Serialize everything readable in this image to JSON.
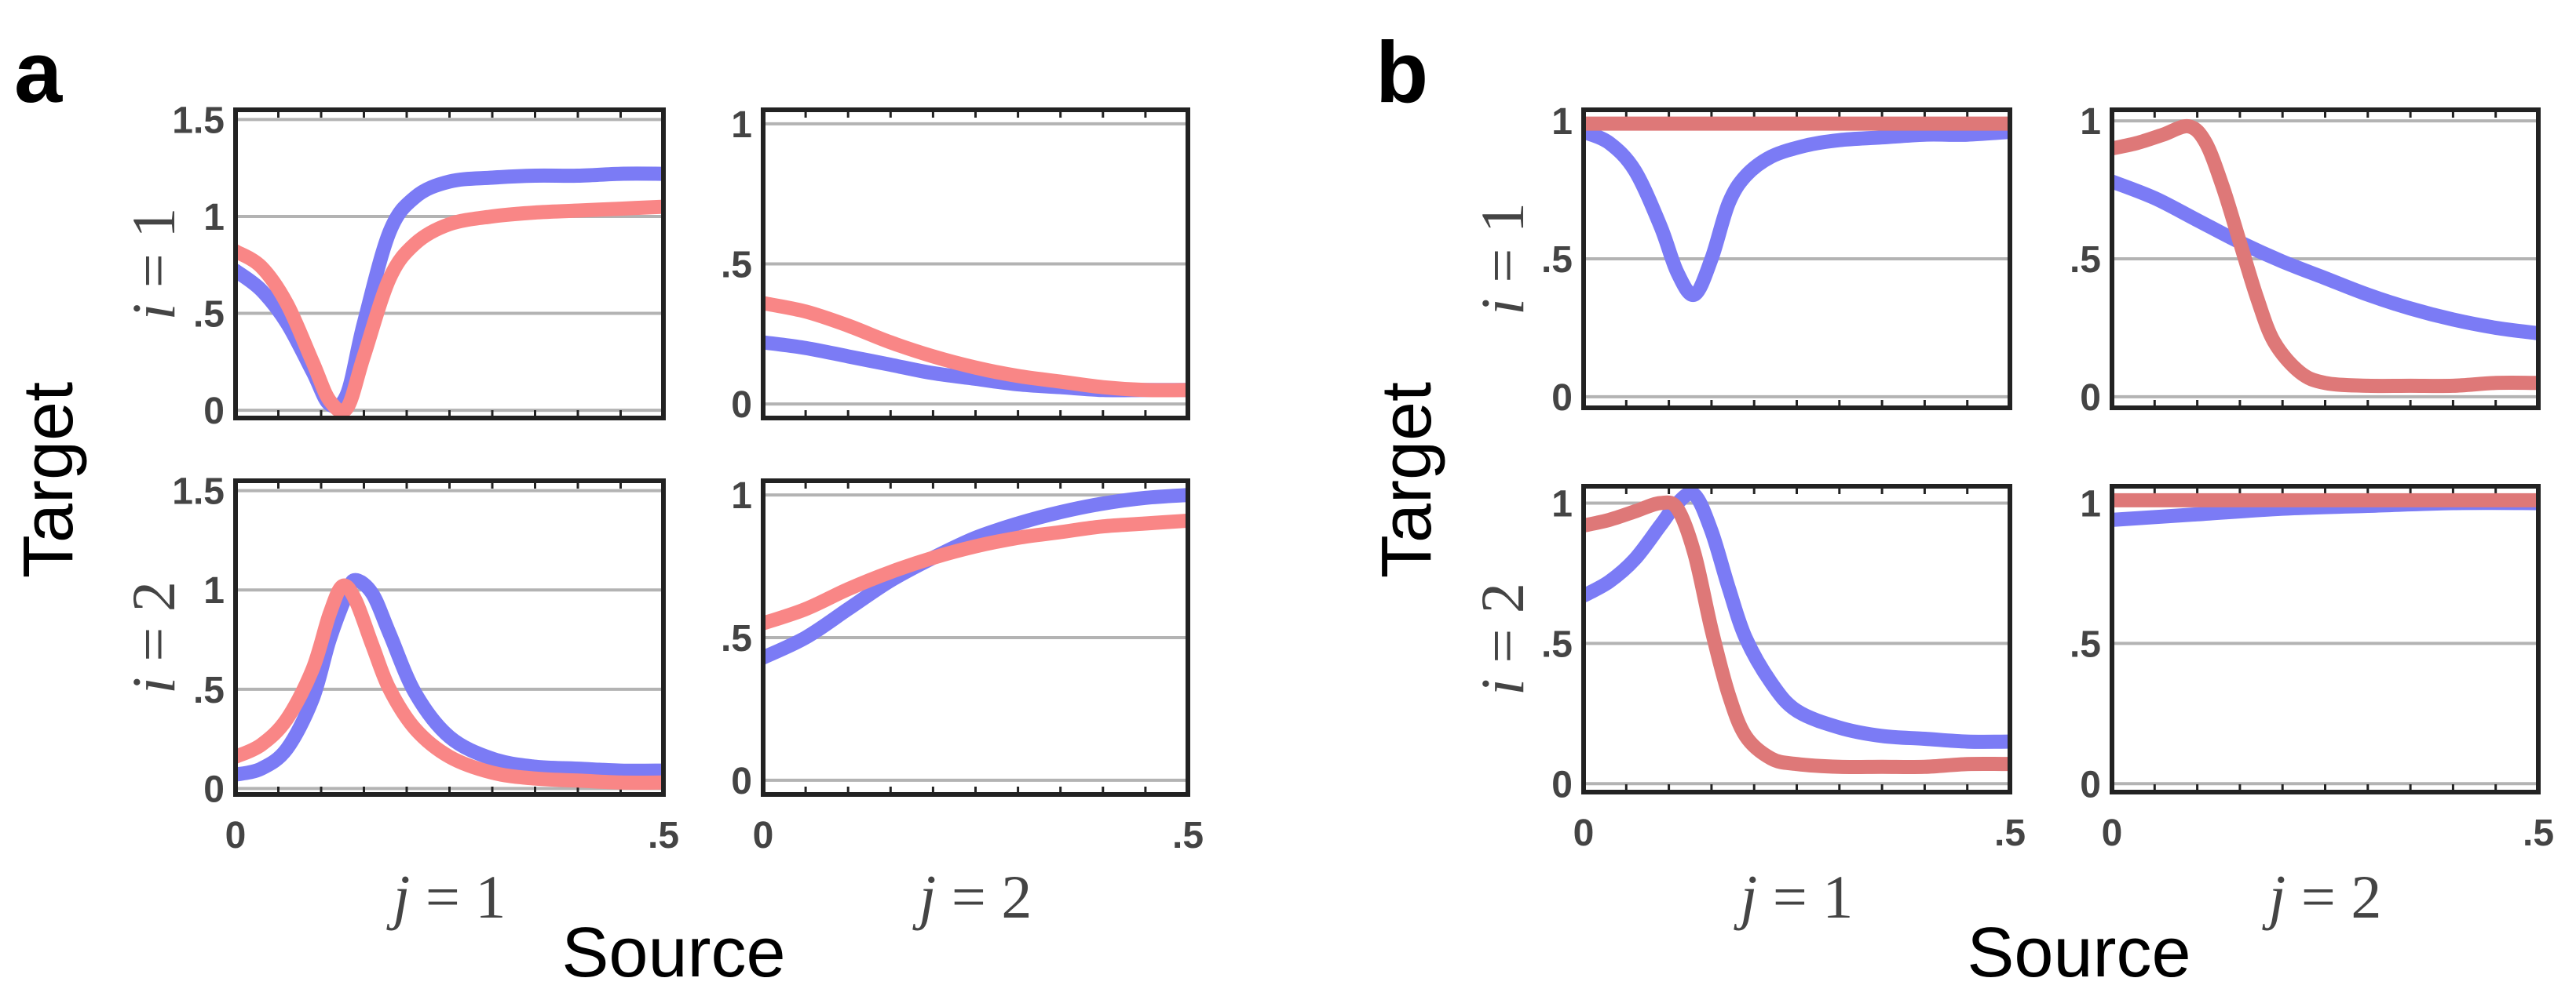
{
  "colors": {
    "blue": "#7b7bf5",
    "red_a": "#f98686",
    "red_b": "#de7878",
    "grid": "#b3b3b3",
    "tick": "#444444"
  },
  "chart_data": {
    "type": "line",
    "panels": [
      {
        "letter": "a",
        "y_title": "Target",
        "x_title": "Source",
        "col_labels": [
          {
            "var": "j",
            "rest": " = 1"
          },
          {
            "var": "j",
            "rest": " = 2"
          }
        ],
        "row_labels": [
          {
            "var": "i",
            "rest": " = 1"
          },
          {
            "var": "i",
            "rest": " = 2"
          }
        ],
        "subplots": [
          {
            "row": 0,
            "col": 0,
            "xlim": [
              0,
              0.5
            ],
            "ylim": [
              -0.04,
              1.55
            ],
            "yticks": [
              0,
              0.5,
              1,
              1.5
            ],
            "yticklabels": [
              "0",
              ".5",
              "1",
              "1.5"
            ],
            "series": [
              {
                "name": "blue",
                "x": [
                  0,
                  0.03,
                  0.06,
                  0.09,
                  0.11,
                  0.13,
                  0.15,
                  0.18,
                  0.21,
                  0.25,
                  0.3,
                  0.35,
                  0.4,
                  0.45,
                  0.5
                ],
                "y": [
                  0.72,
                  0.62,
                  0.45,
                  0.2,
                  0.03,
                  0.08,
                  0.45,
                  0.92,
                  1.1,
                  1.18,
                  1.2,
                  1.21,
                  1.21,
                  1.22,
                  1.22
                ]
              },
              {
                "name": "red",
                "x": [
                  0,
                  0.03,
                  0.06,
                  0.09,
                  0.11,
                  0.13,
                  0.15,
                  0.18,
                  0.21,
                  0.25,
                  0.3,
                  0.35,
                  0.4,
                  0.45,
                  0.5
                ],
                "y": [
                  0.82,
                  0.74,
                  0.55,
                  0.25,
                  0.05,
                  0.01,
                  0.28,
                  0.68,
                  0.86,
                  0.96,
                  1.0,
                  1.02,
                  1.03,
                  1.04,
                  1.05
                ]
              }
            ]
          },
          {
            "row": 0,
            "col": 1,
            "xlim": [
              0,
              0.5
            ],
            "ylim": [
              -0.05,
              1.05
            ],
            "yticks": [
              0,
              0.5,
              1
            ],
            "yticklabels": [
              "0",
              ".5",
              "1"
            ],
            "series": [
              {
                "name": "blue",
                "x": [
                  0,
                  0.05,
                  0.1,
                  0.15,
                  0.2,
                  0.25,
                  0.3,
                  0.35,
                  0.4,
                  0.45,
                  0.5
                ],
                "y": [
                  0.22,
                  0.2,
                  0.17,
                  0.14,
                  0.11,
                  0.09,
                  0.07,
                  0.06,
                  0.05,
                  0.05,
                  0.05
                ]
              },
              {
                "name": "red",
                "x": [
                  0,
                  0.05,
                  0.1,
                  0.15,
                  0.2,
                  0.25,
                  0.3,
                  0.35,
                  0.4,
                  0.45,
                  0.5
                ],
                "y": [
                  0.36,
                  0.33,
                  0.28,
                  0.22,
                  0.17,
                  0.13,
                  0.1,
                  0.08,
                  0.06,
                  0.05,
                  0.05
                ]
              }
            ]
          },
          {
            "row": 1,
            "col": 0,
            "xlim": [
              0,
              0.5
            ],
            "ylim": [
              -0.03,
              1.55
            ],
            "yticks": [
              0,
              0.5,
              1,
              1.5
            ],
            "yticklabels": [
              "0",
              ".5",
              "1",
              "1.5"
            ],
            "series": [
              {
                "name": "blue",
                "x": [
                  0,
                  0.03,
                  0.06,
                  0.09,
                  0.11,
                  0.13,
                  0.14,
                  0.16,
                  0.18,
                  0.21,
                  0.25,
                  0.3,
                  0.35,
                  0.4,
                  0.45,
                  0.5
                ],
                "y": [
                  0.07,
                  0.1,
                  0.2,
                  0.45,
                  0.75,
                  0.98,
                  1.05,
                  0.98,
                  0.78,
                  0.48,
                  0.26,
                  0.15,
                  0.11,
                  0.1,
                  0.09,
                  0.09
                ]
              },
              {
                "name": "red",
                "x": [
                  0,
                  0.03,
                  0.06,
                  0.09,
                  0.11,
                  0.125,
                  0.14,
                  0.16,
                  0.18,
                  0.21,
                  0.25,
                  0.3,
                  0.35,
                  0.4,
                  0.45,
                  0.5
                ],
                "y": [
                  0.16,
                  0.22,
                  0.35,
                  0.6,
                  0.88,
                  1.02,
                  0.95,
                  0.72,
                  0.5,
                  0.3,
                  0.16,
                  0.08,
                  0.05,
                  0.04,
                  0.03,
                  0.03
                ]
              }
            ]
          },
          {
            "row": 1,
            "col": 1,
            "xlim": [
              0,
              0.5
            ],
            "ylim": [
              -0.05,
              1.05
            ],
            "yticks": [
              0,
              0.5,
              1
            ],
            "yticklabels": [
              "0",
              ".5",
              "1"
            ],
            "series": [
              {
                "name": "blue",
                "x": [
                  0,
                  0.05,
                  0.1,
                  0.15,
                  0.2,
                  0.25,
                  0.3,
                  0.35,
                  0.4,
                  0.45,
                  0.5
                ],
                "y": [
                  0.43,
                  0.5,
                  0.6,
                  0.7,
                  0.78,
                  0.85,
                  0.9,
                  0.94,
                  0.97,
                  0.99,
                  1.0
                ]
              },
              {
                "name": "red",
                "x": [
                  0,
                  0.05,
                  0.1,
                  0.15,
                  0.2,
                  0.25,
                  0.3,
                  0.35,
                  0.4,
                  0.45,
                  0.5
                ],
                "y": [
                  0.55,
                  0.6,
                  0.67,
                  0.73,
                  0.78,
                  0.82,
                  0.85,
                  0.87,
                  0.89,
                  0.9,
                  0.91
                ]
              }
            ]
          }
        ]
      },
      {
        "letter": "b",
        "y_title": "Target",
        "x_title": "Source",
        "col_labels": [
          {
            "var": "j",
            "rest": " = 1"
          },
          {
            "var": "j",
            "rest": " = 2"
          }
        ],
        "row_labels": [
          {
            "var": "i",
            "rest": " = 1"
          },
          {
            "var": "i",
            "rest": " = 2"
          }
        ],
        "subplots": [
          {
            "row": 0,
            "col": 0,
            "xlim": [
              0,
              0.5
            ],
            "ylim": [
              -0.04,
              1.04
            ],
            "yticks": [
              0,
              0.5,
              1
            ],
            "yticklabels": [
              "0",
              ".5",
              "1"
            ],
            "series": [
              {
                "name": "blue",
                "x": [
                  0,
                  0.03,
                  0.06,
                  0.09,
                  0.11,
                  0.13,
                  0.15,
                  0.17,
                  0.19,
                  0.22,
                  0.26,
                  0.3,
                  0.35,
                  0.4,
                  0.45,
                  0.5
                ],
                "y": [
                  0.96,
                  0.92,
                  0.82,
                  0.62,
                  0.45,
                  0.37,
                  0.5,
                  0.7,
                  0.8,
                  0.87,
                  0.91,
                  0.93,
                  0.94,
                  0.95,
                  0.95,
                  0.96
                ]
              },
              {
                "name": "red",
                "x": [
                  0,
                  0.5
                ],
                "y": [
                  0.99,
                  0.99
                ]
              }
            ]
          },
          {
            "row": 0,
            "col": 1,
            "xlim": [
              0,
              0.5
            ],
            "ylim": [
              -0.04,
              1.04
            ],
            "yticks": [
              0,
              0.5,
              1
            ],
            "yticklabels": [
              "0",
              ".5",
              "1"
            ],
            "series": [
              {
                "name": "blue",
                "x": [
                  0,
                  0.05,
                  0.1,
                  0.15,
                  0.2,
                  0.25,
                  0.3,
                  0.35,
                  0.4,
                  0.45,
                  0.5
                ],
                "y": [
                  0.78,
                  0.72,
                  0.64,
                  0.56,
                  0.49,
                  0.43,
                  0.37,
                  0.32,
                  0.28,
                  0.25,
                  0.23
                ]
              },
              {
                "name": "red",
                "x": [
                  0,
                  0.03,
                  0.06,
                  0.09,
                  0.11,
                  0.13,
                  0.15,
                  0.17,
                  0.19,
                  0.22,
                  0.25,
                  0.3,
                  0.35,
                  0.4,
                  0.45,
                  0.5
                ],
                "y": [
                  0.9,
                  0.92,
                  0.95,
                  0.98,
                  0.92,
                  0.76,
                  0.56,
                  0.36,
                  0.2,
                  0.09,
                  0.05,
                  0.04,
                  0.04,
                  0.04,
                  0.05,
                  0.05
                ]
              }
            ]
          },
          {
            "row": 1,
            "col": 0,
            "xlim": [
              0,
              0.5
            ],
            "ylim": [
              -0.03,
              1.06
            ],
            "yticks": [
              0,
              0.5,
              1
            ],
            "yticklabels": [
              "0",
              ".5",
              "1"
            ],
            "series": [
              {
                "name": "blue",
                "x": [
                  0,
                  0.03,
                  0.06,
                  0.09,
                  0.11,
                  0.13,
                  0.15,
                  0.17,
                  0.19,
                  0.22,
                  0.25,
                  0.3,
                  0.35,
                  0.4,
                  0.45,
                  0.5
                ],
                "y": [
                  0.67,
                  0.72,
                  0.8,
                  0.92,
                  1.0,
                  1.03,
                  0.9,
                  0.7,
                  0.52,
                  0.36,
                  0.26,
                  0.2,
                  0.17,
                  0.16,
                  0.15,
                  0.15
                ]
              },
              {
                "name": "red",
                "x": [
                  0,
                  0.03,
                  0.06,
                  0.09,
                  0.11,
                  0.13,
                  0.15,
                  0.17,
                  0.19,
                  0.22,
                  0.25,
                  0.3,
                  0.35,
                  0.4,
                  0.45,
                  0.5
                ],
                "y": [
                  0.92,
                  0.94,
                  0.97,
                  1.0,
                  0.98,
                  0.82,
                  0.55,
                  0.32,
                  0.17,
                  0.09,
                  0.07,
                  0.06,
                  0.06,
                  0.06,
                  0.07,
                  0.07
                ]
              }
            ]
          },
          {
            "row": 1,
            "col": 1,
            "xlim": [
              0,
              0.5
            ],
            "ylim": [
              -0.03,
              1.06
            ],
            "yticks": [
              0,
              0.5,
              1
            ],
            "yticklabels": [
              "0",
              ".5",
              "1"
            ],
            "series": [
              {
                "name": "blue",
                "x": [
                  0,
                  0.1,
                  0.2,
                  0.3,
                  0.4,
                  0.5
                ],
                "y": [
                  0.94,
                  0.96,
                  0.98,
                  0.99,
                  1.0,
                  1.0
                ]
              },
              {
                "name": "red",
                "x": [
                  0,
                  0.5
                ],
                "y": [
                  1.01,
                  1.01
                ]
              }
            ]
          }
        ]
      }
    ],
    "xticks": [
      0,
      0.5
    ],
    "xticklabels": [
      "0",
      ".5"
    ]
  }
}
